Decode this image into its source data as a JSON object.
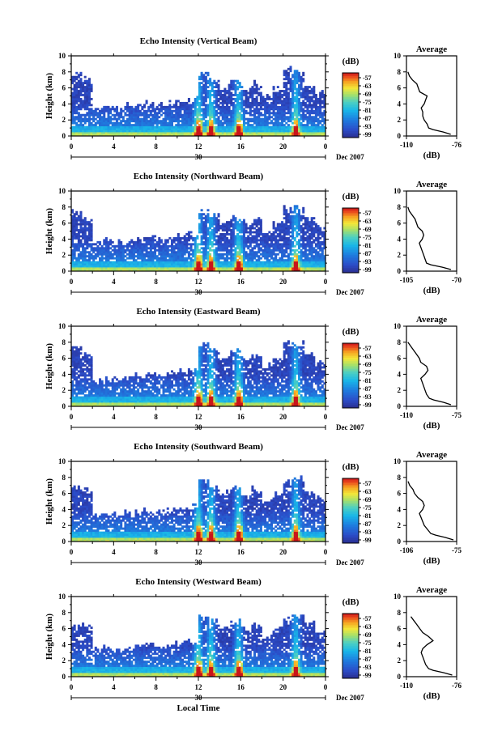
{
  "figure": {
    "date_label": "Dec 2007",
    "xlabel": "Local Time",
    "ylabel": "Height (km)",
    "colorbar_unit": "(dB)",
    "profile_title": "Average",
    "profile_xlabel": "(dB)"
  },
  "chart_data": [
    {
      "type": "heatmap",
      "title": "Echo Intensity (Vertical Beam)",
      "xlabel": "",
      "ylabel": "Height (km)",
      "x_ticks": [
        "0",
        "4",
        "8",
        "12",
        "16",
        "20",
        "0"
      ],
      "x_sub_label": "30",
      "xlim": [
        0,
        24
      ],
      "y_ticks": [
        "0",
        "2",
        "4",
        "6",
        "8",
        "10"
      ],
      "ylim": [
        0,
        10
      ],
      "colorbar": {
        "label": "(dB)",
        "ticks": [
          "-57",
          "-63",
          "-69",
          "-75",
          "-81",
          "-87",
          "-93",
          "-99"
        ],
        "range": [
          -99,
          -57
        ]
      },
      "cloud_top_km": [
        7.8,
        7.0,
        3.5,
        3.8,
        3.6,
        3.8,
        4.0,
        4.2,
        4.0,
        4.4,
        4.5,
        4.6,
        7.8,
        7.0,
        6.0,
        7.0,
        6.0,
        6.5,
        5.0,
        6.0,
        8.3,
        8.0,
        6.5,
        5.5
      ],
      "convective_bands_hours": [
        12,
        13.2,
        15.8,
        21.2
      ],
      "profile": {
        "title": "Average",
        "xlabel": "(dB)",
        "x_ticks": [
          "-110",
          "-76"
        ],
        "xlim": [
          -110,
          -76
        ],
        "ylim": [
          0,
          10
        ],
        "y_ticks": [
          "0",
          "2",
          "4",
          "6",
          "8",
          "10"
        ],
        "height_km": [
          0.2,
          0.5,
          0.8,
          1.0,
          1.5,
          2.0,
          2.5,
          3.0,
          3.5,
          4.0,
          4.5,
          5.0,
          5.5,
          6.0,
          6.5,
          7.0,
          7.5,
          8.0
        ],
        "value_db": [
          -80,
          -85,
          -92,
          -95,
          -96,
          -98,
          -99,
          -99,
          -100,
          -98,
          -97,
          -96,
          -101,
          -102,
          -103,
          -106,
          -108,
          -109
        ]
      }
    },
    {
      "type": "heatmap",
      "title": "Echo Intensity (Northward Beam)",
      "xlabel": "",
      "ylabel": "Height (km)",
      "x_ticks": [
        "0",
        "4",
        "8",
        "12",
        "16",
        "20",
        "0"
      ],
      "x_sub_label": "30",
      "xlim": [
        0,
        24
      ],
      "y_ticks": [
        "0",
        "2",
        "4",
        "6",
        "8",
        "10"
      ],
      "ylim": [
        0,
        10
      ],
      "colorbar": {
        "label": "(dB)",
        "ticks": [
          "-57",
          "-63",
          "-69",
          "-75",
          "-81",
          "-87",
          "-93",
          "-99"
        ],
        "range": [
          -99,
          -57
        ]
      },
      "cloud_top_km": [
        7.5,
        6.5,
        3.5,
        3.8,
        3.6,
        3.8,
        4.0,
        4.2,
        4.0,
        4.4,
        4.5,
        4.6,
        7.5,
        6.8,
        6.0,
        6.8,
        6.0,
        6.5,
        5.0,
        6.0,
        7.8,
        7.8,
        6.5,
        5.5
      ],
      "convective_bands_hours": [
        12,
        13.2,
        15.8,
        21.2
      ],
      "profile": {
        "title": "Average",
        "xlabel": "(dB)",
        "x_ticks": [
          "-105",
          "-70"
        ],
        "xlim": [
          -105,
          -70
        ],
        "ylim": [
          0,
          10
        ],
        "y_ticks": [
          "0",
          "2",
          "4",
          "6",
          "8",
          "10"
        ],
        "height_km": [
          0.2,
          0.5,
          0.8,
          1.0,
          1.5,
          2.0,
          2.5,
          3.0,
          3.5,
          4.0,
          4.5,
          5.0,
          5.5,
          6.0,
          6.5,
          7.0,
          7.5,
          8.0
        ],
        "value_db": [
          -74,
          -80,
          -88,
          -91,
          -92,
          -93,
          -94,
          -95,
          -96,
          -94,
          -93,
          -94,
          -97,
          -98,
          -99,
          -101,
          -103,
          -104
        ]
      }
    },
    {
      "type": "heatmap",
      "title": "Echo Intensity (Eastward Beam)",
      "xlabel": "",
      "ylabel": "Height (km)",
      "x_ticks": [
        "0",
        "4",
        "8",
        "12",
        "16",
        "20",
        "0"
      ],
      "x_sub_label": "30",
      "xlim": [
        0,
        24
      ],
      "y_ticks": [
        "0",
        "2",
        "4",
        "6",
        "8",
        "10"
      ],
      "ylim": [
        0,
        10
      ],
      "colorbar": {
        "label": "(dB)",
        "ticks": [
          "-57",
          "-63",
          "-69",
          "-75",
          "-81",
          "-87",
          "-93",
          "-99"
        ],
        "range": [
          -99,
          -57
        ]
      },
      "cloud_top_km": [
        7.5,
        6.5,
        3.3,
        3.5,
        3.4,
        3.6,
        3.8,
        4.0,
        3.8,
        4.2,
        4.3,
        4.4,
        7.8,
        7.0,
        6.0,
        7.0,
        6.0,
        6.5,
        5.0,
        6.0,
        7.8,
        7.8,
        6.5,
        5.5
      ],
      "convective_bands_hours": [
        12,
        13.2,
        15.8,
        21.2
      ],
      "profile": {
        "title": "Average",
        "xlabel": "(dB)",
        "x_ticks": [
          "-110",
          "-75"
        ],
        "xlim": [
          -110,
          -75
        ],
        "ylim": [
          0,
          10
        ],
        "y_ticks": [
          "0",
          "2",
          "4",
          "6",
          "8",
          "10"
        ],
        "height_km": [
          0.2,
          0.5,
          0.8,
          1.0,
          1.5,
          2.0,
          2.5,
          3.0,
          3.5,
          4.0,
          4.5,
          5.0,
          5.5,
          6.0,
          6.5,
          7.0,
          7.5,
          8.0
        ],
        "value_db": [
          -79,
          -84,
          -91,
          -94,
          -96,
          -97,
          -98,
          -99,
          -100,
          -97,
          -95,
          -96,
          -100,
          -101,
          -103,
          -105,
          -107,
          -109
        ]
      }
    },
    {
      "type": "heatmap",
      "title": "Echo Intensity (Southward Beam)",
      "xlabel": "",
      "ylabel": "Height (km)",
      "x_ticks": [
        "0",
        "4",
        "8",
        "12",
        "16",
        "20",
        "0"
      ],
      "x_sub_label": "30",
      "xlim": [
        0,
        24
      ],
      "y_ticks": [
        "0",
        "2",
        "4",
        "6",
        "8",
        "10"
      ],
      "ylim": [
        0,
        10
      ],
      "colorbar": {
        "label": "(dB)",
        "ticks": [
          "-57",
          "-63",
          "-69",
          "-75",
          "-81",
          "-87",
          "-93",
          "-99"
        ],
        "range": [
          -99,
          -57
        ]
      },
      "cloud_top_km": [
        6.8,
        6.5,
        3.3,
        3.5,
        3.4,
        3.6,
        3.8,
        4.0,
        3.8,
        4.2,
        4.3,
        4.4,
        7.5,
        6.8,
        6.0,
        6.8,
        6.0,
        6.5,
        5.0,
        6.0,
        7.3,
        7.8,
        6.5,
        5.5
      ],
      "convective_bands_hours": [
        12,
        13.2,
        15.8,
        21.2
      ],
      "profile": {
        "title": "Average",
        "xlabel": "(dB)",
        "x_ticks": [
          "-106",
          "-75"
        ],
        "xlim": [
          -106,
          -75
        ],
        "ylim": [
          0,
          10
        ],
        "y_ticks": [
          "0",
          "2",
          "4",
          "6",
          "8",
          "10"
        ],
        "height_km": [
          0.2,
          0.5,
          0.8,
          1.0,
          1.5,
          2.0,
          2.5,
          3.0,
          3.5,
          4.0,
          4.5,
          5.0,
          5.5,
          6.0,
          6.5,
          7.0,
          7.5
        ],
        "value_db": [
          -77,
          -82,
          -88,
          -91,
          -93,
          -95,
          -96,
          -97,
          -98,
          -96,
          -95,
          -96,
          -99,
          -101,
          -102,
          -104,
          -105
        ]
      }
    },
    {
      "type": "heatmap",
      "title": "Echo Intensity (Westward Beam)",
      "xlabel": "Local Time",
      "ylabel": "Height (km)",
      "x_ticks": [
        "0",
        "4",
        "8",
        "12",
        "16",
        "20",
        "0"
      ],
      "x_sub_label": "30",
      "xlim": [
        0,
        24
      ],
      "y_ticks": [
        "0",
        "2",
        "4",
        "6",
        "8",
        "10"
      ],
      "ylim": [
        0,
        10
      ],
      "colorbar": {
        "label": "(dB)",
        "ticks": [
          "-57",
          "-63",
          "-69",
          "-75",
          "-81",
          "-87",
          "-93",
          "-99"
        ],
        "range": [
          -99,
          -57
        ]
      },
      "cloud_top_km": [
        6.5,
        6.5,
        3.3,
        3.5,
        3.4,
        3.6,
        3.8,
        4.0,
        3.8,
        4.2,
        4.3,
        4.4,
        7.5,
        6.8,
        6.0,
        6.8,
        6.0,
        6.5,
        5.0,
        6.0,
        7.3,
        7.5,
        6.5,
        5.5
      ],
      "convective_bands_hours": [
        12,
        13.2,
        15.8,
        21.2
      ],
      "profile": {
        "title": "Average",
        "xlabel": "(dB)",
        "x_ticks": [
          "-110",
          "-76"
        ],
        "xlim": [
          -110,
          -76
        ],
        "ylim": [
          0,
          10
        ],
        "y_ticks": [
          "0",
          "2",
          "4",
          "6",
          "8",
          "10"
        ],
        "height_km": [
          0.2,
          0.5,
          0.8,
          1.0,
          1.5,
          2.0,
          2.5,
          3.0,
          3.5,
          4.0,
          4.5,
          5.0,
          5.5,
          6.0,
          6.5,
          7.0,
          7.5
        ],
        "value_db": [
          -79,
          -85,
          -92,
          -95,
          -97,
          -98,
          -99,
          -100,
          -99,
          -96,
          -92,
          -95,
          -99,
          -101,
          -103,
          -105,
          -107
        ]
      }
    }
  ]
}
